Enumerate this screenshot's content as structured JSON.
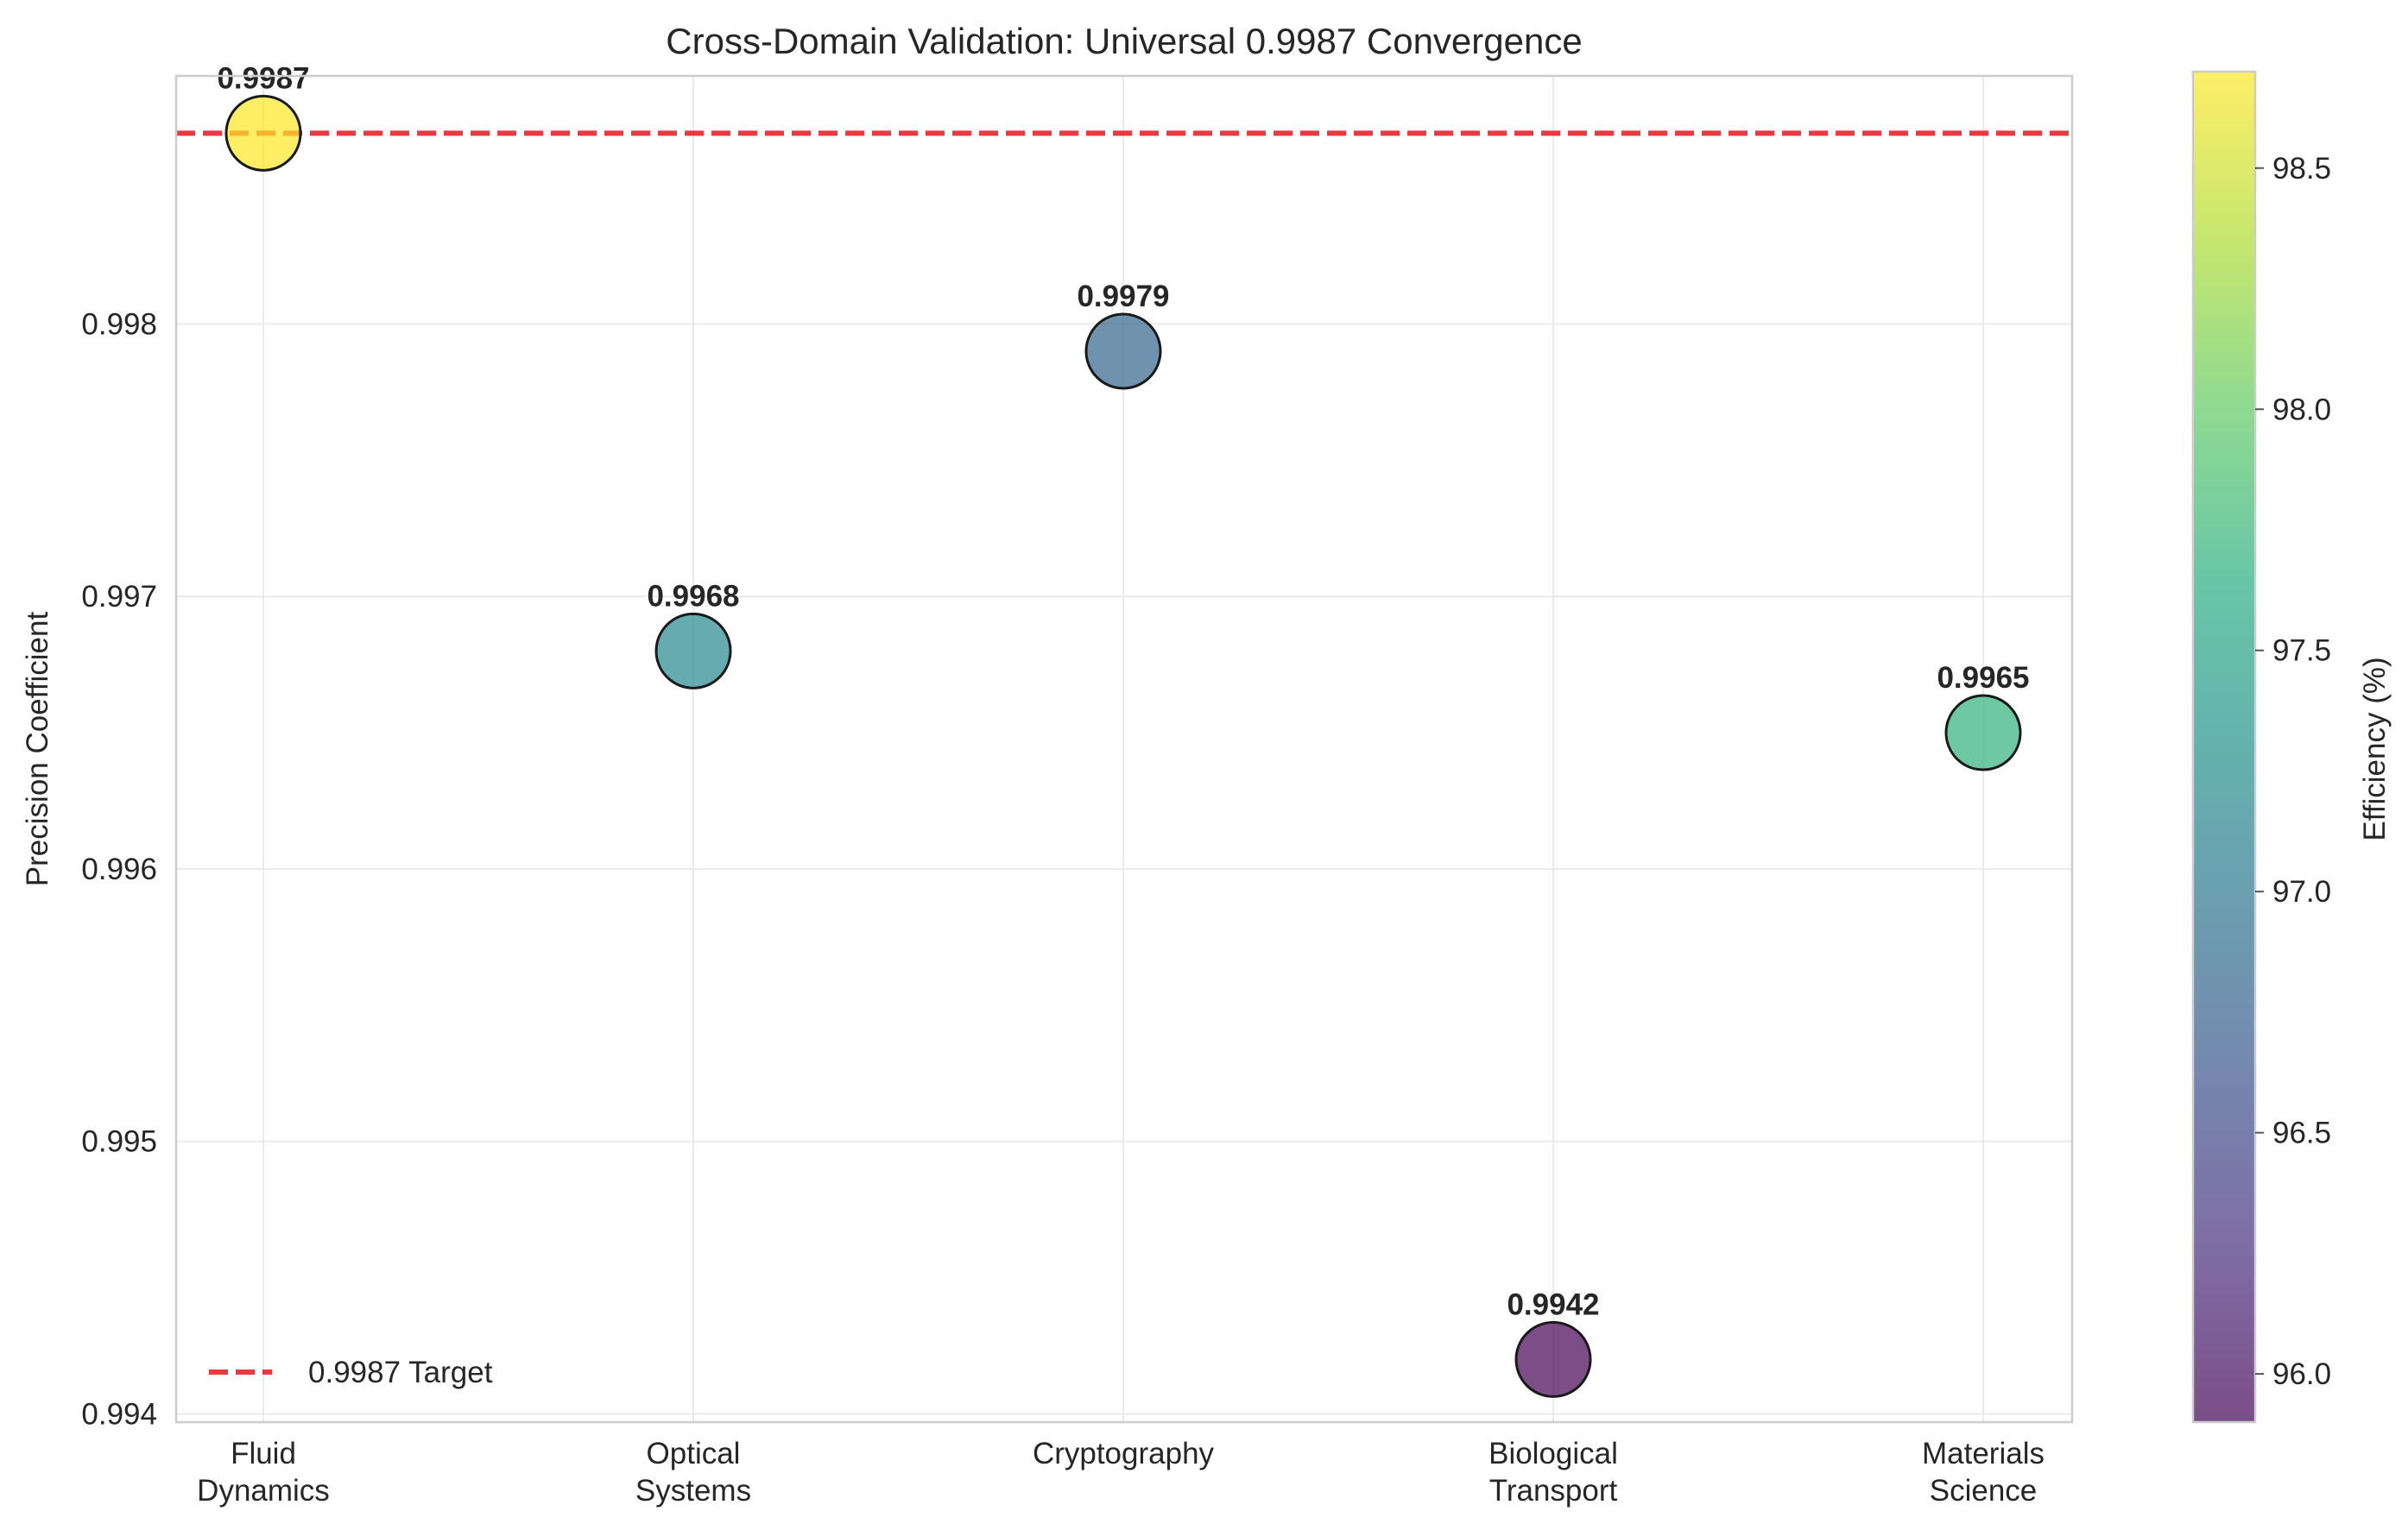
{
  "chart_data": {
    "type": "scatter",
    "title": "Cross-Domain Validation: Universal 0.9987 Convergence",
    "xlabel": "",
    "ylabel": "Precision Coefficient",
    "categories": [
      "Fluid\nDynamics",
      "Optical\nSystems",
      "Cryptography",
      "Biological\nTransport",
      "Materials\nScience"
    ],
    "values": [
      0.9987,
      0.9968,
      0.9979,
      0.9942,
      0.9965
    ],
    "point_labels": [
      "0.9987",
      "0.9968",
      "0.9979",
      "0.9942",
      "0.9965"
    ],
    "efficiency": [
      98.7,
      97.2,
      96.8,
      95.9,
      97.7
    ],
    "ylim": [
      0.99397,
      0.99891
    ],
    "yticks": [
      0.994,
      0.995,
      0.996,
      0.997,
      0.998
    ],
    "ytick_labels": [
      "0.994",
      "0.995",
      "0.996",
      "0.997",
      "0.998"
    ],
    "target": {
      "value": 0.9987,
      "label": "0.9987 Target",
      "color": "#e8242a"
    },
    "legend_position": "lower-left",
    "grid": true,
    "colorbar": {
      "label": "Efficiency (%)",
      "colormap": "viridis",
      "range": [
        95.9,
        98.7
      ],
      "ticks": [
        96.0,
        96.5,
        97.0,
        97.5,
        98.0,
        98.5
      ],
      "tick_labels": [
        "96.0",
        "96.5",
        "97.0",
        "97.5",
        "98.0",
        "98.5"
      ]
    }
  }
}
